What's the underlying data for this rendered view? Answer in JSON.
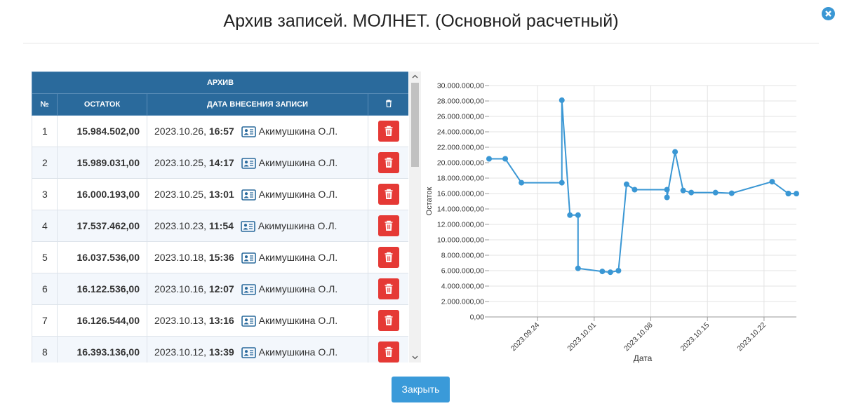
{
  "header": {
    "title": "Архив записей. МОЛНЕТ. (Основной расчетный)"
  },
  "table": {
    "group_header": "АРХИВ",
    "columns": [
      "№",
      "ОСТАТОК",
      "ДАТА ВНЕСЕНИЯ ЗАПИСИ"
    ],
    "rows": [
      {
        "number": 1,
        "balance": "15.984.502,00",
        "date": "2023.10.26,",
        "time": "16:57",
        "user": "Акимушкина О.Л."
      },
      {
        "number": 2,
        "balance": "15.989.031,00",
        "date": "2023.10.25,",
        "time": "14:17",
        "user": "Акимушкина О.Л."
      },
      {
        "number": 3,
        "balance": "16.000.193,00",
        "date": "2023.10.25,",
        "time": "13:01",
        "user": "Акимушкина О.Л."
      },
      {
        "number": 4,
        "balance": "17.537.462,00",
        "date": "2023.10.23,",
        "time": "11:54",
        "user": "Акимушкина О.Л."
      },
      {
        "number": 5,
        "balance": "16.037.536,00",
        "date": "2023.10.18,",
        "time": "15:36",
        "user": "Акимушкина О.Л."
      },
      {
        "number": 6,
        "balance": "16.122.536,00",
        "date": "2023.10.16,",
        "time": "12:07",
        "user": "Акимушкина О.Л."
      },
      {
        "number": 7,
        "balance": "16.126.544,00",
        "date": "2023.10.13,",
        "time": "13:16",
        "user": "Акимушкина О.Л."
      },
      {
        "number": 8,
        "balance": "16.393.136,00",
        "date": "2023.10.12,",
        "time": "13:39",
        "user": "Акимушкина О.Л."
      }
    ]
  },
  "footer": {
    "close_button": "Закрыть"
  },
  "chart_data": {
    "type": "line",
    "x_label": "Дата",
    "y_label": "Остаток",
    "color": "#3a97d4",
    "grid": true,
    "x": [
      "2023.09.18",
      "2023.09.20",
      "2023.09.22",
      "2023.09.27",
      "2023.09.27",
      "2023.09.28",
      "2023.09.29",
      "2023.09.29",
      "2023.10.02",
      "2023.10.03",
      "2023.10.04",
      "2023.10.05",
      "2023.10.06",
      "2023.10.10",
      "2023.10.10",
      "2023.10.11",
      "2023.10.12",
      "2023.10.13",
      "2023.10.16",
      "2023.10.18",
      "2023.10.23",
      "2023.10.25",
      "2023.10.25",
      "2023.10.26"
    ],
    "values": [
      20500000,
      20500000,
      17400000,
      17400000,
      28100000,
      13200000,
      13200000,
      6300000,
      5900000,
      5800000,
      6000000,
      17200000,
      16500000,
      16500000,
      15500000,
      21400000,
      16393136,
      16126544,
      16122536,
      16037536,
      17537462,
      16000193,
      15989031,
      15984502
    ],
    "xlim": [
      "2023.09.18",
      "2023.10.26"
    ],
    "xticks": [
      "2023.09.24",
      "2023.10.01",
      "2023.10.08",
      "2023.10.15",
      "2023.10.22"
    ],
    "ylim": [
      0,
      30000000
    ],
    "yticks": [
      {
        "value": 0,
        "label": "0,00"
      },
      {
        "value": 2000000,
        "label": "2.000.000,00"
      },
      {
        "value": 4000000,
        "label": "4.000.000,00"
      },
      {
        "value": 6000000,
        "label": "6.000.000,00"
      },
      {
        "value": 8000000,
        "label": "8.000.000,00"
      },
      {
        "value": 10000000,
        "label": "10.000.000,00"
      },
      {
        "value": 12000000,
        "label": "12.000.000,00"
      },
      {
        "value": 14000000,
        "label": "14.000.000,00"
      },
      {
        "value": 16000000,
        "label": "16.000.000,00"
      },
      {
        "value": 18000000,
        "label": "18.000.000,00"
      },
      {
        "value": 20000000,
        "label": "20.000.000,00"
      },
      {
        "value": 22000000,
        "label": "22.000.000,00"
      },
      {
        "value": 24000000,
        "label": "24.000.000,00"
      },
      {
        "value": 26000000,
        "label": "26.000.000,00"
      },
      {
        "value": 28000000,
        "label": "28.000.000,00"
      },
      {
        "value": 30000000,
        "label": "30.000.000,00"
      }
    ]
  }
}
